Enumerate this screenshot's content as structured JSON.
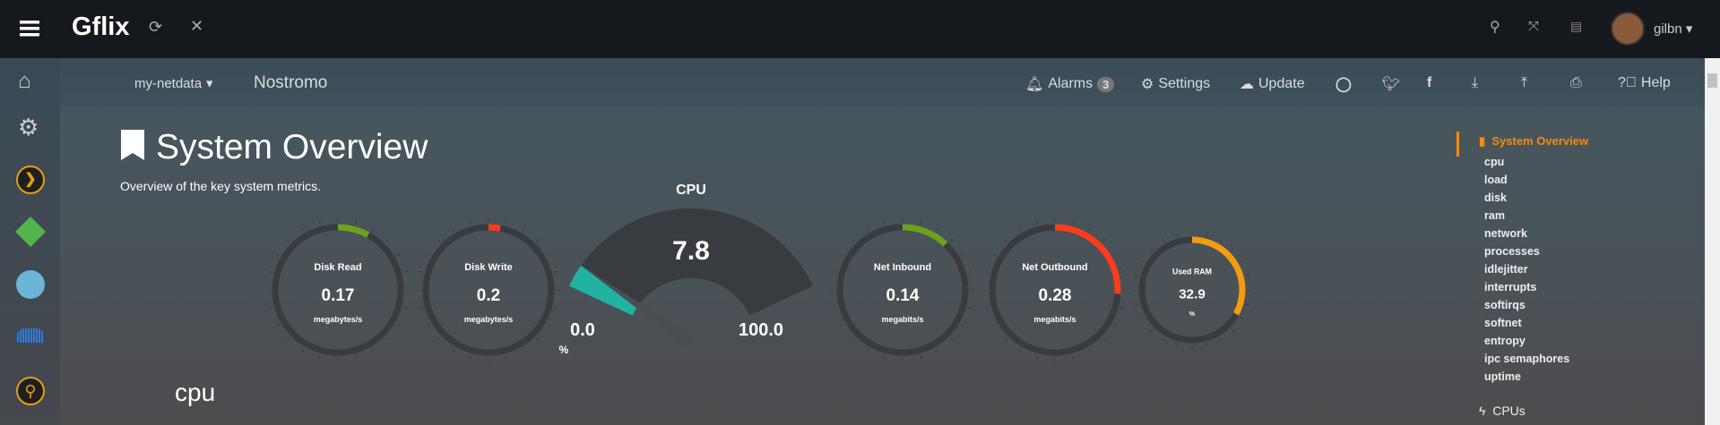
{
  "topbar": {
    "app_title": "Gflix",
    "user": "gilbn"
  },
  "navbar": {
    "server": "my-netdata",
    "hostname": "Nostromo",
    "alarms": "Alarms",
    "alarm_count": "3",
    "settings": "Settings",
    "update": "Update",
    "help": "Help"
  },
  "page": {
    "title": "System Overview",
    "subtitle": "Overview of the key system metrics.",
    "section": "cpu"
  },
  "gauges": [
    {
      "title": "Disk Read",
      "value": "0.17",
      "units": "megabytes/s",
      "fill_fraction": 0.08,
      "color": "#6aa31d"
    },
    {
      "title": "Disk Write",
      "value": "0.2",
      "units": "megabytes/s",
      "fill_fraction": 0.03,
      "color": "#ff3b1e"
    },
    {
      "title": "Net Inbound",
      "value": "0.14",
      "units": "megabits/s",
      "fill_fraction": 0.12,
      "color": "#6aa31d"
    },
    {
      "title": "Net Outbound",
      "value": "0.28",
      "units": "megabits/s",
      "fill_fraction": 0.26,
      "color": "#ff3b1e"
    },
    {
      "title": "Used RAM",
      "value": "32.9",
      "units": "%",
      "fill_fraction": 0.33,
      "color": "#f39c12"
    }
  ],
  "cpu_gauge": {
    "title": "CPU",
    "value": "7.8",
    "min": "0.0",
    "max": "100.0",
    "units": "%",
    "fraction": 0.078,
    "color": "#22b2a2"
  },
  "right_nav": {
    "active": "System Overview",
    "items": [
      "cpu",
      "load",
      "disk",
      "ram",
      "network",
      "processes",
      "idlejitter",
      "interrupts",
      "softirqs",
      "softnet",
      "entropy",
      "ipc semaphores",
      "uptime"
    ],
    "next_section": "CPUs"
  },
  "colors": {
    "accent": "#f58a0c",
    "topbar": "#15191d"
  }
}
